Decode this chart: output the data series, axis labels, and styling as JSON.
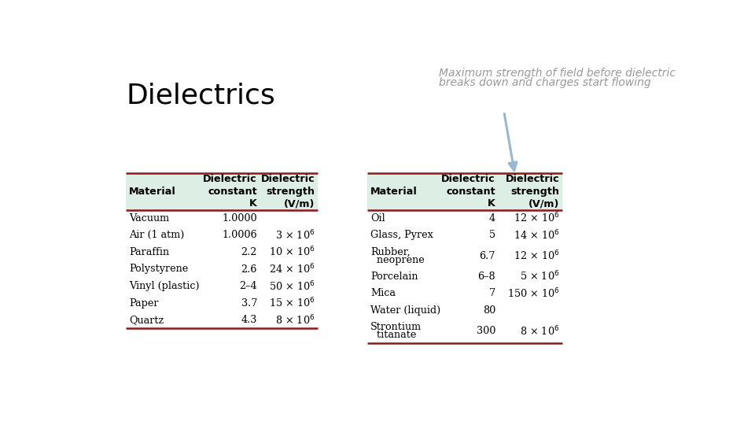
{
  "title": "Dielectrics",
  "annotation_line1": "Maximum strength of field before dielectric",
  "annotation_line2": "breaks down and charges start flowing",
  "background_color": "#ffffff",
  "title_color": "#000000",
  "annotation_color": "#999999",
  "table_header_bg": "#ddeee5",
  "table_header_line_color": "#8b1a1a",
  "arrow_color": "#9ab8cc",
  "left_table": {
    "headers": [
      "Material",
      "Dielectric\nconstant\nK",
      "Dielectric\nstrength\n(V/m)"
    ],
    "rows": [
      [
        "Vacuum",
        "1.0000",
        ""
      ],
      [
        "Air (1 atm)",
        "1.0006",
        "3 × 10$^6$"
      ],
      [
        "Paraffin",
        "2.2",
        "10 × 10$^6$"
      ],
      [
        "Polystyrene",
        "2.6",
        "24 × 10$^6$"
      ],
      [
        "Vinyl (plastic)",
        "2–4",
        "50 × 10$^6$"
      ],
      [
        "Paper",
        "3.7",
        "15 × 10$^6$"
      ],
      [
        "Quartz",
        "4.3",
        "8 × 10$^6$"
      ]
    ]
  },
  "right_table": {
    "headers": [
      "Material",
      "Dielectric\nconstant\nK",
      "Dielectric\nstrength\n(V/m)"
    ],
    "rows": [
      [
        [
          "Oil"
        ],
        "4",
        "12 × 10$^6$"
      ],
      [
        [
          "Glass, Pyrex"
        ],
        "5",
        "14 × 10$^6$"
      ],
      [
        [
          "Rubber,",
          "  neoprene"
        ],
        "6.7",
        "12 × 10$^6$"
      ],
      [
        [
          "Porcelain"
        ],
        "6–8",
        "5 × 10$^6$"
      ],
      [
        [
          "Mica"
        ],
        "7",
        "150 × 10$^6$"
      ],
      [
        [
          "Water (liquid)"
        ],
        "80",
        ""
      ],
      [
        [
          "Strontium",
          "  titanate"
        ],
        "300",
        "8 × 10$^6$"
      ]
    ]
  }
}
